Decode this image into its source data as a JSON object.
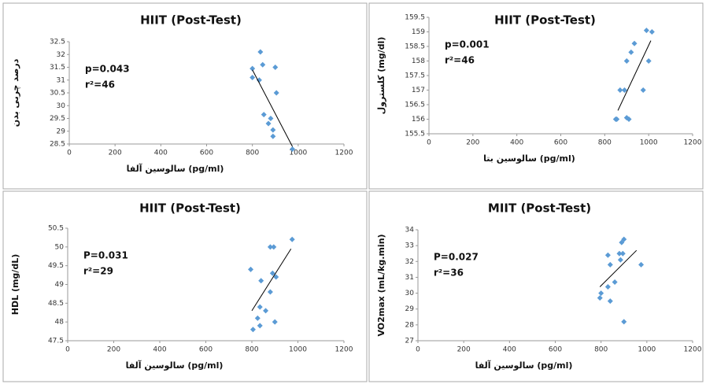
{
  "chart_data": [
    {
      "type": "scatter",
      "title": "HIIT (Post-Test)",
      "x_label": "سالوسین آلفا (pg/ml)",
      "y_label": "درصد چربی بدن",
      "annotations": [
        "p=0.043",
        "r²=46"
      ],
      "x": [
        835,
        845,
        800,
        900,
        800,
        830,
        905,
        850,
        880,
        870,
        890,
        890,
        975
      ],
      "y": [
        32.1,
        31.6,
        31.45,
        31.5,
        31.1,
        31.0,
        30.5,
        29.65,
        29.5,
        29.3,
        29.05,
        28.8,
        28.3
      ],
      "trendline": {
        "x": [
          800,
          975
        ],
        "y": [
          31.4,
          28.4
        ]
      },
      "xlim": [
        0,
        1200
      ],
      "xticks": [
        0,
        200,
        400,
        600,
        800,
        1000,
        1200
      ],
      "ylim": [
        28.5,
        32.5
      ],
      "yticks": [
        28.5,
        29,
        29.5,
        30,
        30.5,
        31,
        31.5,
        32,
        32.5
      ],
      "color": "#5b9bd5"
    },
    {
      "type": "scatter",
      "title": "HIIT (Post-Test)",
      "x_label": "سالوسین بتا (pg/ml)",
      "y_label": "کلسترول (mg/dl)",
      "annotations": [
        "p=0.001",
        "r²=46"
      ],
      "x": [
        990,
        1015,
        935,
        920,
        900,
        1000,
        870,
        890,
        975,
        850,
        855,
        910,
        900
      ],
      "y": [
        159.05,
        159,
        158.6,
        158.3,
        158,
        158,
        157,
        157,
        157,
        156,
        156,
        156,
        156.05
      ],
      "trendline": {
        "x": [
          860,
          1010
        ],
        "y": [
          156.3,
          158.7
        ]
      },
      "xlim": [
        0,
        1200
      ],
      "xticks": [
        0,
        200,
        400,
        600,
        800,
        1000,
        1200
      ],
      "ylim": [
        155.5,
        159.5
      ],
      "yticks": [
        155.5,
        156,
        156.5,
        157,
        157.5,
        158,
        158.5,
        159,
        159.5
      ],
      "color": "#5b9bd5"
    },
    {
      "type": "scatter",
      "title": "HIIT (Post-Test)",
      "x_label": "سالوسین آلفا (pg/ml)",
      "y_label": "HDL (mg/dL)",
      "annotations": [
        "P=0.031",
        "r²=29"
      ],
      "x": [
        975,
        880,
        895,
        795,
        890,
        905,
        840,
        880,
        860,
        835,
        825,
        900,
        835,
        805
      ],
      "y": [
        50.2,
        50,
        50,
        49.4,
        49.3,
        49.2,
        49.1,
        48.8,
        48.3,
        48.4,
        48.1,
        48,
        47.9,
        47.8
      ],
      "trendline": {
        "x": [
          800,
          970
        ],
        "y": [
          48.3,
          49.95
        ]
      },
      "xlim": [
        0,
        1200
      ],
      "xticks": [
        0,
        200,
        400,
        600,
        800,
        1000,
        1200
      ],
      "ylim": [
        47.5,
        50.5
      ],
      "yticks": [
        47.5,
        48,
        48.5,
        49,
        49.5,
        50,
        50.5
      ],
      "color": "#5b9bd5"
    },
    {
      "type": "scatter",
      "title": "MIIT (Post-Test)",
      "x_label": "سالوسین آلفا (pg/ml)",
      "y_label": "VO2max (mL/kg.min)",
      "annotations": [
        "P=0.027",
        "r²=36"
      ],
      "x": [
        900,
        890,
        880,
        895,
        830,
        885,
        975,
        840,
        860,
        830,
        800,
        795,
        840,
        900
      ],
      "y": [
        33.4,
        33.2,
        32.5,
        32.5,
        32.4,
        32.1,
        31.8,
        31.8,
        30.7,
        30.4,
        30,
        29.7,
        29.5,
        28.2
      ],
      "trendline": {
        "x": [
          795,
          955
        ],
        "y": [
          30.4,
          32.7
        ]
      },
      "xlim": [
        0,
        1200
      ],
      "xticks": [
        0,
        200,
        400,
        600,
        800,
        1000,
        1200
      ],
      "ylim": [
        27,
        34
      ],
      "yticks": [
        27,
        28,
        29,
        30,
        31,
        32,
        33,
        34
      ],
      "color": "#5b9bd5"
    }
  ]
}
